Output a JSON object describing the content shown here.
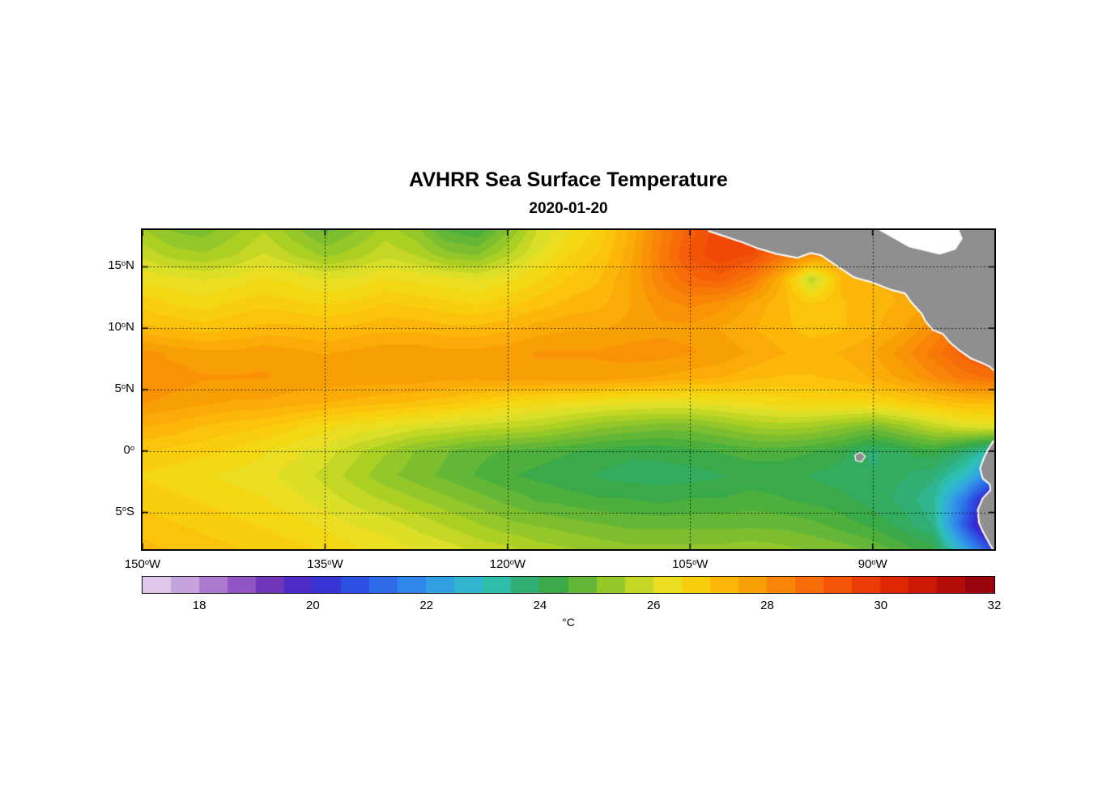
{
  "title": "AVHRR Sea Surface Temperature",
  "subtitle": "2020-01-20",
  "chart_data": {
    "type": "heatmap",
    "title": "AVHRR Sea Surface Temperature",
    "subtitle": "2020-01-20",
    "units": "°C",
    "lon_range": [
      -150,
      -80
    ],
    "lat_range": [
      -8,
      18
    ],
    "x_ticks": [
      {
        "value": -150,
        "text": "150",
        "suffix": "W"
      },
      {
        "value": -135,
        "text": "135",
        "suffix": "W"
      },
      {
        "value": -120,
        "text": "120",
        "suffix": "W"
      },
      {
        "value": -105,
        "text": "105",
        "suffix": "W"
      },
      {
        "value": -90,
        "text": "90",
        "suffix": "W"
      }
    ],
    "y_ticks": [
      {
        "value": 15,
        "text": "15",
        "suffix": "N"
      },
      {
        "value": 10,
        "text": "10",
        "suffix": "N"
      },
      {
        "value": 5,
        "text": "5",
        "suffix": "N"
      },
      {
        "value": 0,
        "text": "0",
        "suffix": ""
      },
      {
        "value": -5,
        "text": "5",
        "suffix": "S"
      }
    ],
    "gridlines": {
      "lons": [
        -135,
        -120,
        -105,
        -90
      ],
      "lats": [
        15,
        10,
        5,
        0,
        -5
      ],
      "style": "dotted"
    },
    "grid_lons": [
      -150,
      -147.5,
      -145,
      -142.5,
      -140,
      -137.5,
      -135,
      -132.5,
      -130,
      -127.5,
      -125,
      -122.5,
      -120,
      -117.5,
      -115,
      -112.5,
      -110,
      -107.5,
      -105,
      -102.5,
      -100,
      -97.5,
      -95,
      -92.5,
      -90,
      -87.5,
      -85,
      -82.5,
      -80
    ],
    "grid_lats": [
      18,
      16,
      14,
      12,
      10,
      8,
      6,
      4,
      2,
      0,
      -2,
      -4,
      -6,
      -8
    ],
    "sst_grid": [
      [
        25.4,
        25.1,
        25.0,
        25.3,
        25.6,
        25.2,
        24.8,
        25.1,
        25.5,
        25.2,
        24.6,
        24.4,
        25.1,
        25.9,
        26.3,
        26.7,
        27.4,
        28.3,
        29.0,
        29.6,
        29.8,
        29.2,
        28.6,
        28.1,
        27.6,
        27.3,
        27.1,
        27.0,
        27.0
      ],
      [
        25.8,
        25.5,
        25.4,
        25.6,
        25.9,
        25.6,
        25.3,
        25.5,
        25.8,
        25.6,
        25.2,
        25.1,
        25.6,
        26.1,
        26.6,
        26.9,
        27.5,
        28.4,
        29.2,
        29.6,
        29.4,
        28.7,
        28.1,
        27.7,
        27.4,
        27.1,
        27.0,
        27.0,
        27.0
      ],
      [
        26.3,
        26.2,
        26.1,
        26.2,
        26.4,
        26.3,
        26.1,
        26.2,
        26.4,
        26.3,
        26.2,
        26.1,
        26.3,
        26.6,
        26.9,
        27.1,
        27.6,
        28.3,
        28.8,
        29.0,
        28.5,
        27.4,
        25.6,
        27.2,
        27.4,
        27.4,
        27.4,
        27.5,
        27.6
      ],
      [
        26.8,
        26.6,
        26.5,
        26.7,
        26.8,
        26.7,
        26.6,
        26.7,
        26.9,
        26.8,
        26.7,
        26.6,
        26.8,
        27.0,
        27.2,
        27.3,
        27.6,
        28.0,
        28.2,
        28.0,
        27.6,
        27.2,
        26.9,
        27.1,
        27.3,
        27.4,
        27.6,
        28.0,
        28.4
      ],
      [
        27.2,
        27.1,
        27.0,
        27.1,
        27.2,
        27.2,
        27.1,
        27.2,
        27.3,
        27.3,
        27.2,
        27.2,
        27.3,
        27.5,
        27.6,
        27.6,
        27.7,
        27.8,
        27.8,
        27.6,
        27.4,
        27.2,
        27.0,
        27.1,
        27.3,
        27.6,
        28.1,
        28.8,
        29.2
      ],
      [
        28.0,
        27.8,
        27.7,
        27.7,
        27.8,
        27.7,
        27.6,
        27.7,
        27.8,
        27.8,
        27.7,
        27.7,
        27.8,
        27.9,
        27.9,
        27.9,
        28.0,
        28.0,
        27.9,
        27.8,
        27.6,
        27.4,
        27.3,
        27.4,
        27.6,
        28.0,
        28.5,
        29.0,
        29.3
      ],
      [
        28.1,
        28.0,
        27.9,
        27.9,
        27.9,
        27.8,
        27.8,
        27.8,
        27.8,
        27.8,
        27.7,
        27.7,
        27.8,
        27.8,
        27.8,
        27.8,
        27.7,
        27.6,
        27.5,
        27.4,
        27.2,
        27.1,
        27.1,
        27.2,
        27.4,
        27.7,
        28.1,
        28.5,
        28.7
      ],
      [
        27.9,
        27.8,
        27.7,
        27.6,
        27.6,
        27.5,
        27.4,
        27.3,
        27.2,
        27.1,
        27.0,
        26.8,
        26.6,
        26.5,
        26.4,
        26.3,
        26.2,
        26.2,
        26.2,
        26.3,
        26.4,
        26.5,
        26.6,
        26.6,
        26.6,
        26.8,
        27.0,
        27.2,
        27.2
      ],
      [
        27.4,
        27.3,
        27.1,
        27.0,
        26.9,
        26.7,
        26.5,
        26.3,
        26.2,
        26.0,
        25.9,
        25.8,
        25.7,
        25.6,
        25.4,
        25.2,
        25.1,
        25.0,
        25.0,
        25.2,
        25.4,
        25.5,
        25.4,
        25.2,
        25.0,
        25.3,
        25.7,
        26.0,
        26.1
      ],
      [
        26.9,
        26.8,
        26.7,
        26.6,
        26.4,
        26.2,
        26.0,
        25.7,
        25.4,
        25.1,
        24.9,
        24.7,
        24.6,
        24.5,
        24.4,
        24.3,
        24.2,
        24.2,
        24.3,
        24.4,
        24.5,
        24.5,
        24.4,
        24.2,
        23.8,
        24.1,
        24.3,
        23.8,
        23.2
      ],
      [
        26.6,
        26.5,
        26.4,
        26.3,
        26.2,
        26.0,
        25.8,
        25.5,
        25.2,
        25.0,
        24.8,
        24.6,
        24.4,
        24.3,
        24.2,
        24.1,
        24.0,
        24.0,
        24.0,
        24.1,
        24.2,
        24.2,
        24.1,
        24.0,
        23.9,
        23.9,
        23.7,
        23.0,
        21.5
      ],
      [
        26.8,
        26.7,
        26.6,
        26.5,
        26.4,
        26.2,
        26.0,
        25.8,
        25.6,
        25.4,
        25.2,
        25.0,
        24.8,
        24.6,
        24.5,
        24.4,
        24.4,
        24.3,
        24.4,
        24.4,
        24.5,
        24.4,
        24.3,
        24.2,
        24.0,
        23.8,
        23.4,
        21.5,
        19.0
      ],
      [
        27.0,
        26.9,
        26.8,
        26.7,
        26.6,
        26.5,
        26.3,
        26.1,
        26.0,
        25.8,
        25.6,
        25.4,
        25.2,
        25.1,
        25.0,
        24.9,
        24.8,
        24.8,
        24.8,
        24.8,
        24.8,
        24.8,
        24.7,
        24.5,
        24.3,
        24.0,
        23.6,
        21.0,
        18.2
      ],
      [
        27.2,
        27.1,
        27.0,
        26.9,
        26.8,
        26.7,
        26.6,
        26.4,
        26.3,
        26.1,
        26.0,
        25.8,
        25.7,
        25.5,
        25.4,
        25.3,
        25.2,
        25.2,
        25.2,
        25.2,
        25.3,
        25.2,
        25.1,
        25.0,
        24.8,
        24.5,
        24.2,
        22.5,
        20.5
      ]
    ],
    "colormap_stops": [
      [
        17,
        "#e8daf0"
      ],
      [
        17.8,
        "#c49fda"
      ],
      [
        18.6,
        "#9a5ec6"
      ],
      [
        19.3,
        "#6c33b8"
      ],
      [
        20,
        "#3b28cc"
      ],
      [
        20.8,
        "#2b52e2"
      ],
      [
        21.6,
        "#2f7eea"
      ],
      [
        22.4,
        "#32a6e0"
      ],
      [
        23.1,
        "#2fc2bb"
      ],
      [
        23.7,
        "#2fae78"
      ],
      [
        24.3,
        "#3aaa42"
      ],
      [
        25,
        "#7cbe2f"
      ],
      [
        25.6,
        "#b6d322"
      ],
      [
        26.1,
        "#e6e22a"
      ],
      [
        26.6,
        "#f8d60e"
      ],
      [
        27.2,
        "#fcba0a"
      ],
      [
        27.8,
        "#f99c06"
      ],
      [
        28.4,
        "#f87e08"
      ],
      [
        29,
        "#f56008"
      ],
      [
        29.6,
        "#ef4306"
      ],
      [
        30.2,
        "#e12803"
      ],
      [
        31,
        "#c21104"
      ],
      [
        32,
        "#8e0011"
      ]
    ],
    "colorbar": {
      "min": 17,
      "max": 32,
      "step": 0.5,
      "tick_values": [
        18,
        20,
        22,
        24,
        26,
        28,
        30,
        32
      ],
      "label": "°C",
      "position": "bottom"
    },
    "colors": {
      "land": "#8f8f8f",
      "coast_line": "#ffffff",
      "grid_line": "#000000",
      "frame": "#000000",
      "no_data": "#ffffff"
    },
    "land_polygons": {
      "central_america_coast": [
        [
          -103.5,
          18
        ],
        [
          -102,
          17.5
        ],
        [
          -100.5,
          17
        ],
        [
          -99.5,
          16.6
        ],
        [
          -97.8,
          16.1
        ],
        [
          -96.2,
          15.8
        ],
        [
          -95.1,
          16.2
        ],
        [
          -94.2,
          16.0
        ],
        [
          -93,
          15.2
        ],
        [
          -91.5,
          14.2
        ],
        [
          -90,
          13.8
        ],
        [
          -88.5,
          13.2
        ],
        [
          -87.3,
          12.9
        ],
        [
          -86.8,
          12.2
        ],
        [
          -85.9,
          11.2
        ],
        [
          -85.6,
          10.6
        ],
        [
          -85.0,
          9.9
        ],
        [
          -84.2,
          9.6
        ],
        [
          -83.6,
          8.9
        ],
        [
          -82.9,
          8.3
        ],
        [
          -81.9,
          7.6
        ],
        [
          -80.9,
          7.2
        ],
        [
          -80.3,
          6.9
        ],
        [
          -80,
          6.6
        ]
      ],
      "central_america_close": [
        [
          -80,
          18
        ],
        [
          -103.5,
          18
        ]
      ],
      "caribbean_mask": [
        [
          -89.5,
          18
        ],
        [
          -87,
          16.6
        ],
        [
          -84.5,
          16.0
        ],
        [
          -83.2,
          16.4
        ],
        [
          -82.6,
          17.3
        ],
        [
          -82.9,
          18
        ]
      ],
      "south_america_coast": [
        [
          -80,
          0.8
        ],
        [
          -80.4,
          0.2
        ],
        [
          -80.8,
          -0.6
        ],
        [
          -81.1,
          -1.4
        ],
        [
          -80.9,
          -2.2
        ],
        [
          -80.3,
          -2.7
        ],
        [
          -80.25,
          -3.2
        ],
        [
          -80.9,
          -3.9
        ],
        [
          -81.3,
          -4.8
        ],
        [
          -81.2,
          -5.8
        ],
        [
          -80.9,
          -6.5
        ],
        [
          -80.3,
          -7.6
        ],
        [
          -80.05,
          -8
        ]
      ],
      "south_america_close": [
        [
          -80,
          -8
        ],
        [
          -80,
          0.8
        ]
      ],
      "galapagos": [
        [
          -91.4,
          -0.35
        ],
        [
          -91.0,
          -0.15
        ],
        [
          -90.65,
          -0.45
        ],
        [
          -90.95,
          -0.85
        ],
        [
          -91.35,
          -0.75
        ]
      ]
    }
  }
}
